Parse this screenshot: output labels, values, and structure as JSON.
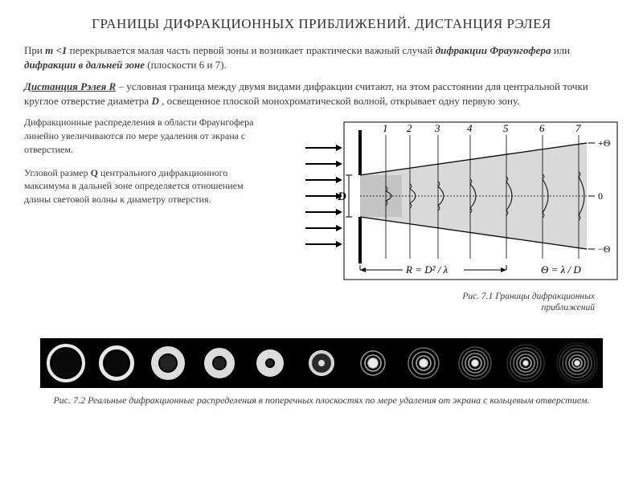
{
  "title": "ГРАНИЦЫ  ДИФРАКЦИОННЫХ  ПРИБЛИЖЕНИЙ. ДИСТАНЦИЯ РЭЛЕЯ",
  "para1_pre": "При ",
  "para1_m": "m <1",
  "para1_mid1": " перекрывается малая часть первой зоны и возникает практически важный случай ",
  "para1_b1": "дифракции Фраунгофера",
  "para1_mid2": " или ",
  "para1_b2": "дифракции в дальней зоне",
  "para1_post": " (плоскости 6 и 7).",
  "para2_b": "Дистанция Рэлея R",
  "para2_rest": "  –  условная граница между двумя видами дифракции считают, на этом расстоянии для центральной точки круглое отверстие диаметра ",
  "para2_D": "D",
  "para2_rest2": " , освещенное плоской монохроматической волной, открывает одну первую зону.",
  "left_p1": "Дифракционные распределения в области Фраунгофера линейно увеличиваются по мере удаления от экрана с отверстием.",
  "left_p2_a": "Угловой размер ",
  "left_p2_Q": "Q",
  "left_p2_b": " центрального дифракционного максимума в дальней зоне определяется отношением длины световой волны к диаметру отверстия.",
  "fig71_a": "Рис. 7.1 Границы дифракционных",
  "fig71_b": "приближений",
  "fig72": "Рис. 7.2 Реальные дифракционные распределения в поперечных плоскостях по мере удаления от экрана с кольцевым отверстием.",
  "diagram": {
    "plane_labels": [
      "1",
      "2",
      "3",
      "4",
      "5",
      "6",
      "7"
    ],
    "D_label": "D",
    "R_formula": "R = D² / λ",
    "theta_formula": "Θ = λ / D",
    "plus_theta": "+Θ",
    "zero_label": "0",
    "minus_theta": "−Θ",
    "colors": {
      "stroke": "#000000",
      "fill_shade": "#bfbfbf",
      "bg": "#ffffff"
    }
  },
  "ring_patterns": [
    {
      "type": "thin_ring",
      "outer": 24,
      "inner": 20
    },
    {
      "type": "thin_ring",
      "outer": 22,
      "inner": 17
    },
    {
      "type": "wide_ring",
      "outer": 21,
      "inner": 12
    },
    {
      "type": "wide_ring",
      "outer": 19,
      "inner": 9
    },
    {
      "type": "wide_ring",
      "outer": 17,
      "inner": 6
    },
    {
      "type": "blob_ring",
      "outer": 16,
      "inner": 4
    },
    {
      "type": "spot_rings",
      "core": 6,
      "rings": [
        10,
        15
      ]
    },
    {
      "type": "spot_rings",
      "core": 5,
      "rings": [
        9,
        14,
        19
      ]
    },
    {
      "type": "spot_rings",
      "core": 4,
      "rings": [
        8,
        12,
        16,
        20
      ]
    },
    {
      "type": "airy",
      "core": 3,
      "rings": [
        7,
        11,
        15,
        19,
        23
      ]
    },
    {
      "type": "airy",
      "core": 3,
      "rings": [
        6,
        10,
        14,
        18,
        22,
        25
      ]
    }
  ]
}
